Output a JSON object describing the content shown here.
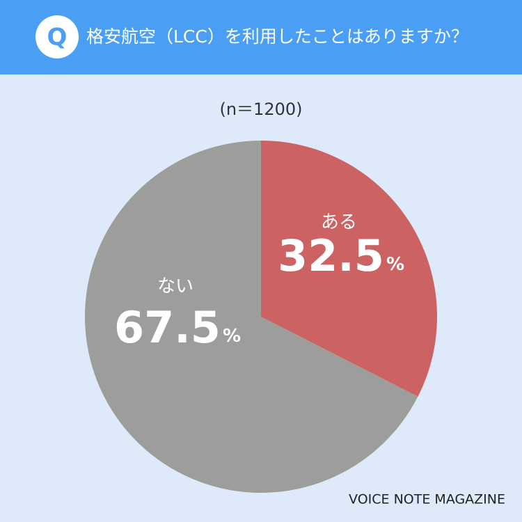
{
  "chart_data": {
    "type": "pie",
    "badge": "Q",
    "title": "格安航空（LCC）を利用したことはありますか？",
    "subtitle": "(n＝1200)",
    "categories": [
      "ある",
      "ない"
    ],
    "values": [
      32.5,
      67.5
    ],
    "value_labels": [
      "32.5%",
      "67.5%"
    ],
    "colors": [
      "#cd6262",
      "#9d9d9b"
    ],
    "source": "VOICE NOTE MAGAZINE"
  }
}
